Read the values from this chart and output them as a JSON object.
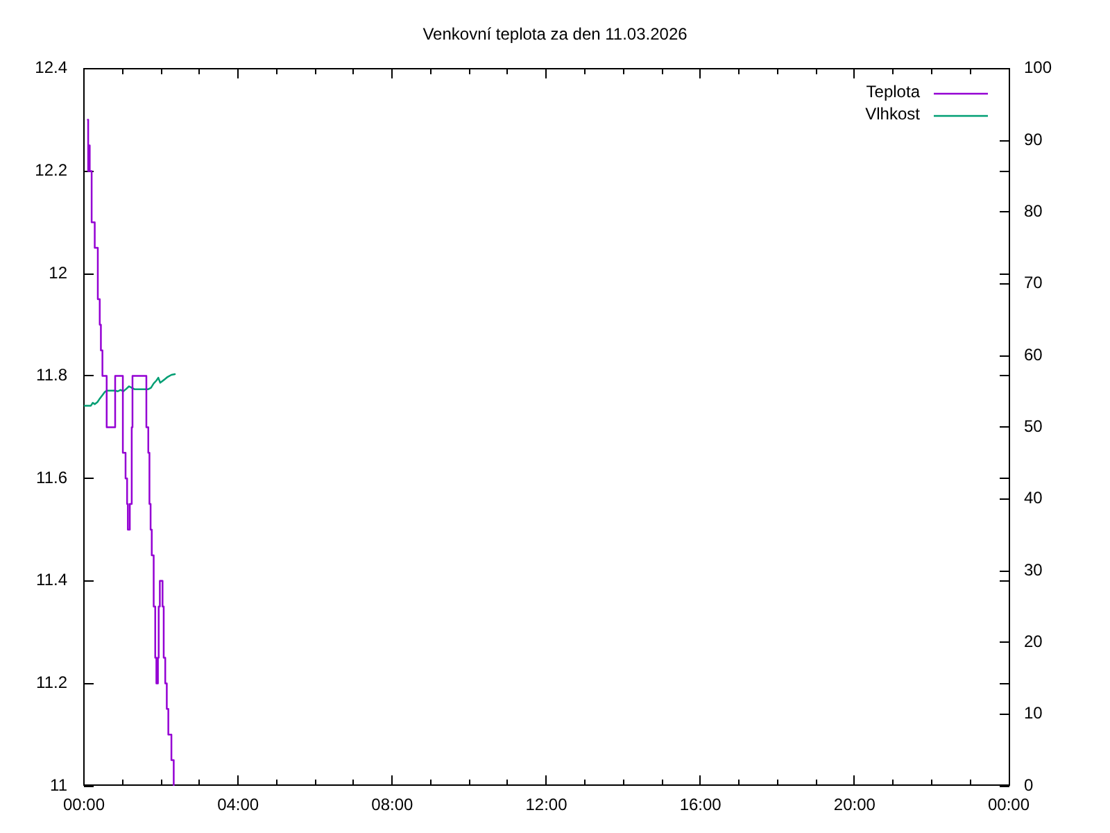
{
  "chart_data": {
    "type": "line",
    "title": "Venkovní teplota za den 11.03.2026",
    "xlim": [
      0,
      24
    ],
    "xticks": [
      {
        "value": 0,
        "label": "00:00"
      },
      {
        "value": 1,
        "label": null
      },
      {
        "value": 2,
        "label": null
      },
      {
        "value": 3,
        "label": null
      },
      {
        "value": 4,
        "label": "04:00"
      },
      {
        "value": 5,
        "label": null
      },
      {
        "value": 6,
        "label": null
      },
      {
        "value": 7,
        "label": null
      },
      {
        "value": 8,
        "label": "08:00"
      },
      {
        "value": 9,
        "label": null
      },
      {
        "value": 10,
        "label": null
      },
      {
        "value": 11,
        "label": null
      },
      {
        "value": 12,
        "label": "12:00"
      },
      {
        "value": 13,
        "label": null
      },
      {
        "value": 14,
        "label": null
      },
      {
        "value": 15,
        "label": null
      },
      {
        "value": 16,
        "label": "16:00"
      },
      {
        "value": 17,
        "label": null
      },
      {
        "value": 18,
        "label": null
      },
      {
        "value": 19,
        "label": null
      },
      {
        "value": 20,
        "label": "20:00"
      },
      {
        "value": 21,
        "label": null
      },
      {
        "value": 22,
        "label": null
      },
      {
        "value": 23,
        "label": null
      },
      {
        "value": 24,
        "label": "00:00"
      }
    ],
    "ylim": [
      11,
      12.4
    ],
    "yticks": [
      11,
      11.2,
      11.4,
      11.6,
      11.8,
      12,
      12.2,
      12.4
    ],
    "y2lim": [
      0,
      100
    ],
    "y2ticks": [
      0,
      10,
      20,
      30,
      40,
      50,
      60,
      70,
      80,
      90,
      100
    ],
    "legend": "top right",
    "series": [
      {
        "name": "Teplota",
        "type": "step",
        "color": "#9400d3",
        "x": [
          0.1,
          0.11,
          0.13,
          0.15,
          0.2,
          0.28,
          0.36,
          0.41,
          0.44,
          0.48,
          0.59,
          0.81,
          1.01,
          1.08,
          1.12,
          1.14,
          1.19,
          1.24,
          1.26,
          1.62,
          1.67,
          1.7,
          1.73,
          1.76,
          1.81,
          1.85,
          1.88,
          1.92,
          1.94,
          1.97,
          2.04,
          2.07,
          2.11,
          2.15,
          2.19,
          2.27,
          2.33
        ],
        "values": [
          12.3,
          12.2,
          12.25,
          12.2,
          12.1,
          12.05,
          11.95,
          11.9,
          11.85,
          11.8,
          11.7,
          11.8,
          11.65,
          11.6,
          11.55,
          11.5,
          11.55,
          11.7,
          11.8,
          11.7,
          11.65,
          11.55,
          11.5,
          11.45,
          11.35,
          11.25,
          11.2,
          11.25,
          11.35,
          11.4,
          11.35,
          11.25,
          11.2,
          11.15,
          11.1,
          11.05,
          11.0
        ]
      },
      {
        "name": "Vlhkost",
        "axis": "y2",
        "color": "#009e73",
        "x": [
          0.01,
          0.18,
          0.23,
          0.28,
          0.35,
          0.4,
          0.47,
          0.54,
          0.59,
          0.81,
          0.88,
          0.95,
          1.02,
          1.09,
          1.17,
          1.24,
          1.31,
          1.67,
          1.74,
          1.81,
          1.88,
          1.93,
          1.98,
          2.03,
          2.1,
          2.17,
          2.27,
          2.36
        ],
        "values": [
          53.0,
          53.0,
          53.4,
          53.2,
          53.5,
          53.9,
          54.4,
          54.9,
          55.1,
          55.1,
          55.0,
          55.2,
          55.0,
          55.3,
          55.7,
          55.5,
          55.3,
          55.3,
          55.5,
          56.1,
          56.5,
          56.9,
          56.2,
          56.4,
          56.7,
          57.0,
          57.3,
          57.4
        ]
      }
    ]
  }
}
